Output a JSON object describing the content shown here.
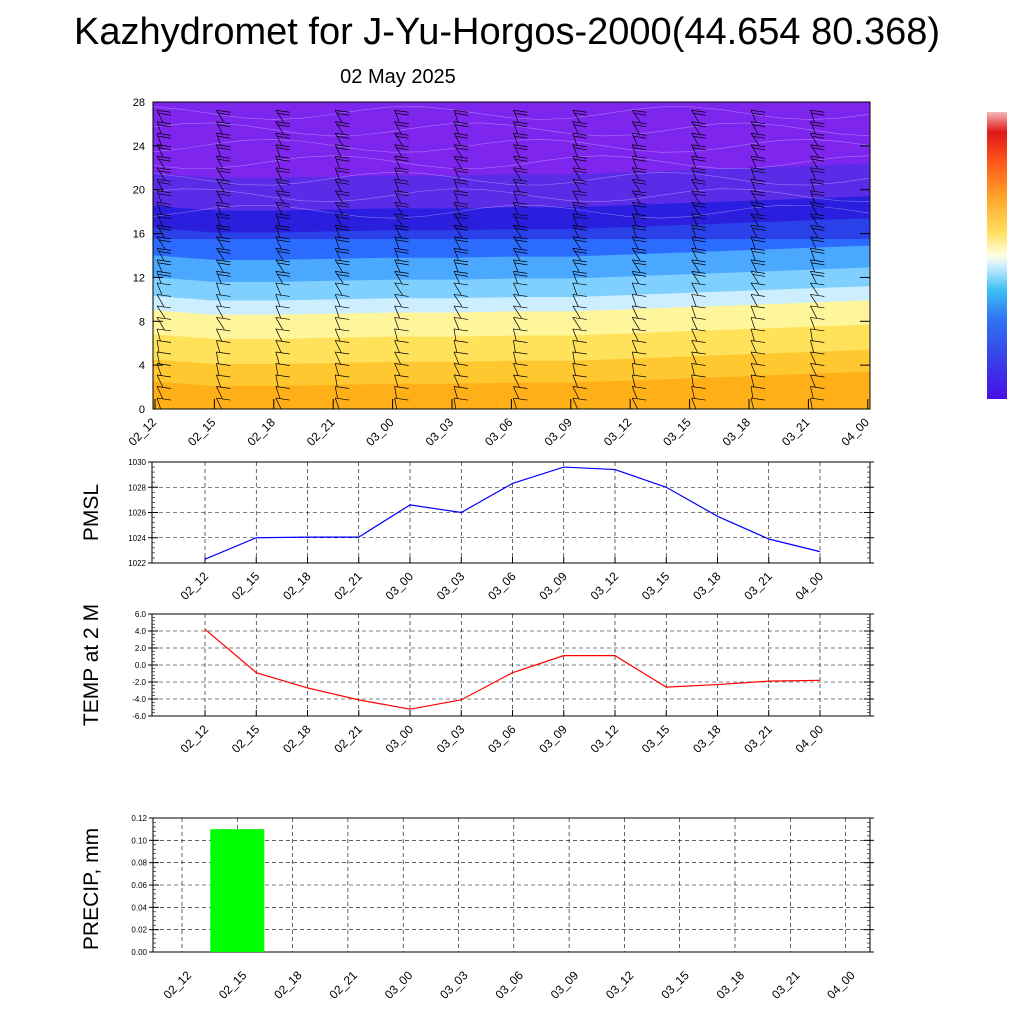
{
  "title": "Kazhydromet for J-Yu-Horgos-2000(44.654 80.368)",
  "subtitle": "02 May 2025",
  "chart_data": [
    {
      "type": "heatmap",
      "name": "cross-section",
      "x": [
        "02_12",
        "02_15",
        "02_18",
        "02_21",
        "03_00",
        "03_03",
        "03_06",
        "03_09",
        "03_12",
        "03_15",
        "03_18",
        "03_21",
        "04_00"
      ],
      "yticks": [
        0,
        4,
        8,
        12,
        16,
        20,
        24,
        28
      ],
      "ylim": [
        0,
        28
      ],
      "warm_top_level": [
        9.0,
        8.6,
        8.6,
        8.7,
        8.8,
        8.8,
        8.9,
        8.9,
        9.1,
        9.3,
        9.5,
        9.7,
        9.9
      ],
      "wind_barbs": true,
      "colorbar": true,
      "colors": [
        "#ffa500",
        "#ffc830",
        "#fff59a",
        "#7fd0ff",
        "#2b6cff",
        "#2a1fe0",
        "#8a28f0"
      ]
    },
    {
      "type": "line",
      "name": "pmsl",
      "ylabel": "PMSL",
      "x": [
        "02_12",
        "02_15",
        "02_18",
        "02_21",
        "03_00",
        "03_03",
        "03_06",
        "03_09",
        "03_12",
        "03_15",
        "03_18",
        "03_21",
        "04_00"
      ],
      "values": [
        1022.3,
        1024.0,
        1024.05,
        1024.05,
        1026.6,
        1026.0,
        1028.3,
        1029.6,
        1029.4,
        1028.0,
        1025.7,
        1023.9,
        1022.9
      ],
      "yticks": [
        "1022",
        "1024",
        "1026",
        "1028",
        "1030"
      ],
      "ylim": [
        1022,
        1030
      ],
      "grid": true,
      "color": "#0000ff"
    },
    {
      "type": "line",
      "name": "temp",
      "ylabel": "TEMP at 2 M",
      "x": [
        "02_12",
        "02_15",
        "02_18",
        "02_21",
        "03_00",
        "03_03",
        "03_06",
        "03_09",
        "03_12",
        "03_15",
        "03_18",
        "03_21",
        "04_00"
      ],
      "values": [
        4.2,
        -0.9,
        -2.7,
        -4.1,
        -5.2,
        -4.1,
        -0.9,
        1.1,
        1.1,
        -2.6,
        -2.3,
        -1.9,
        -1.8
      ],
      "yticks": [
        "6.0",
        "4.0",
        "2.0",
        "0.0",
        "-2.0",
        "-4.0",
        "-6.0"
      ],
      "ylim": [
        -6,
        6
      ],
      "grid": true,
      "color": "#ff0000"
    },
    {
      "type": "bar",
      "name": "precip",
      "ylabel": "PRECIP, mm",
      "x": [
        "02_12",
        "02_15",
        "02_18",
        "02_21",
        "03_00",
        "03_03",
        "03_06",
        "03_09",
        "03_12",
        "03_15",
        "03_18",
        "03_21",
        "04_00"
      ],
      "values": [
        0,
        0.11,
        0,
        0,
        0,
        0,
        0,
        0,
        0,
        0,
        0,
        0,
        0
      ],
      "yticks": [
        "0.12",
        "0.10",
        "0.08",
        "0.06",
        "0.04",
        "0.02",
        "0.00"
      ],
      "ylim": [
        0,
        0.12
      ],
      "grid": true,
      "color": "#00ff00"
    }
  ]
}
